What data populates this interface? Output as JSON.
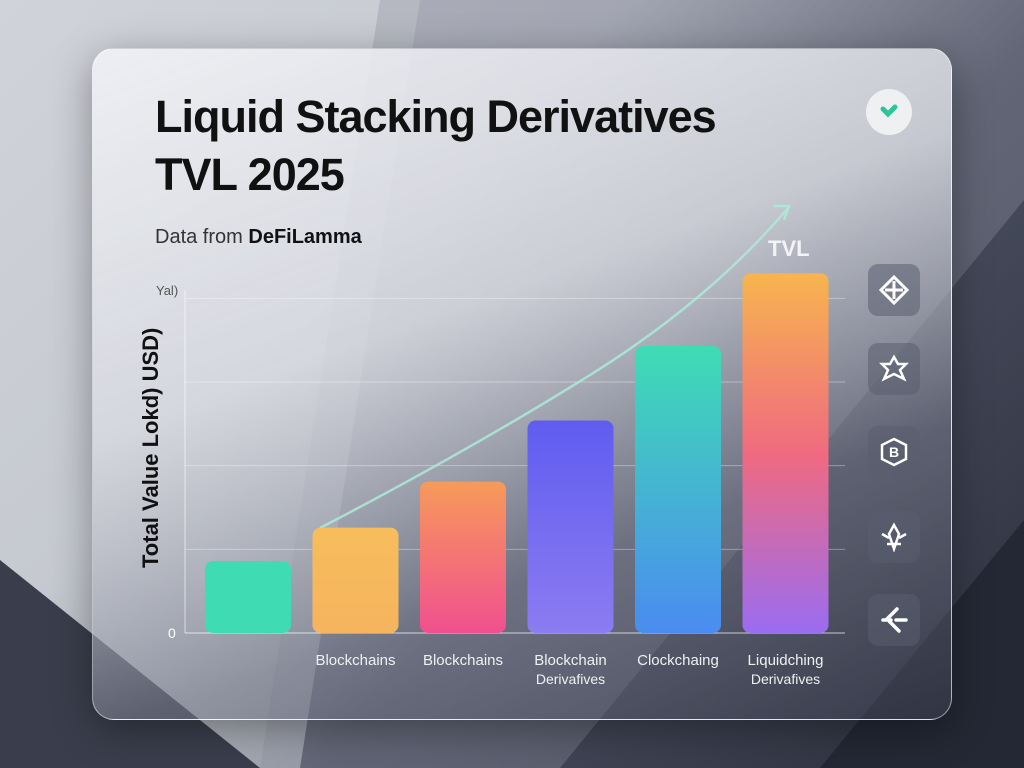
{
  "chart_data": {
    "type": "bar",
    "title": "Liquid Stacking Derivatives TVL 2025",
    "subtitle_prefix": "Data from",
    "subtitle_source": "DeFiLamma",
    "ylabel": "Total  Value Lokd) USD)",
    "ytop_label": "Yal)",
    "ytick_zero": "0",
    "ylim": [
      0,
      4.1
    ],
    "grid": true,
    "categories": [
      {
        "line1": "",
        "line2": ""
      },
      {
        "line1": "Blockchains",
        "line2": ""
      },
      {
        "line1": "Blockchains",
        "line2": ""
      },
      {
        "line1": "Blockchain",
        "line2": "Derivafives"
      },
      {
        "line1": "Clockchaing",
        "line2": ""
      },
      {
        "line1": "Liquidching",
        "line2": "Derivafives"
      }
    ],
    "values": [
      0.86,
      1.26,
      1.81,
      2.54,
      3.43,
      4.3
    ],
    "bar_colors": [
      [
        "#3fdcb4",
        "#3fdcb4"
      ],
      [
        "#f7bd5c",
        "#f5b45e"
      ],
      [
        "#f79a5a",
        "#f0508f"
      ],
      [
        "#5f5cf0",
        "#8c7cf0"
      ],
      [
        "#3fdcb4",
        "#4a8cf0"
      ],
      [
        "#f7b54e",
        "#f06a80",
        "#9a6cf0"
      ]
    ],
    "trend_label": "TVL"
  },
  "icons": [
    "brand-logo-icon",
    "crosshair-diamond-icon",
    "star-icon",
    "b-hexagon-icon",
    "rocket-icon",
    "arrow-split-icon"
  ]
}
